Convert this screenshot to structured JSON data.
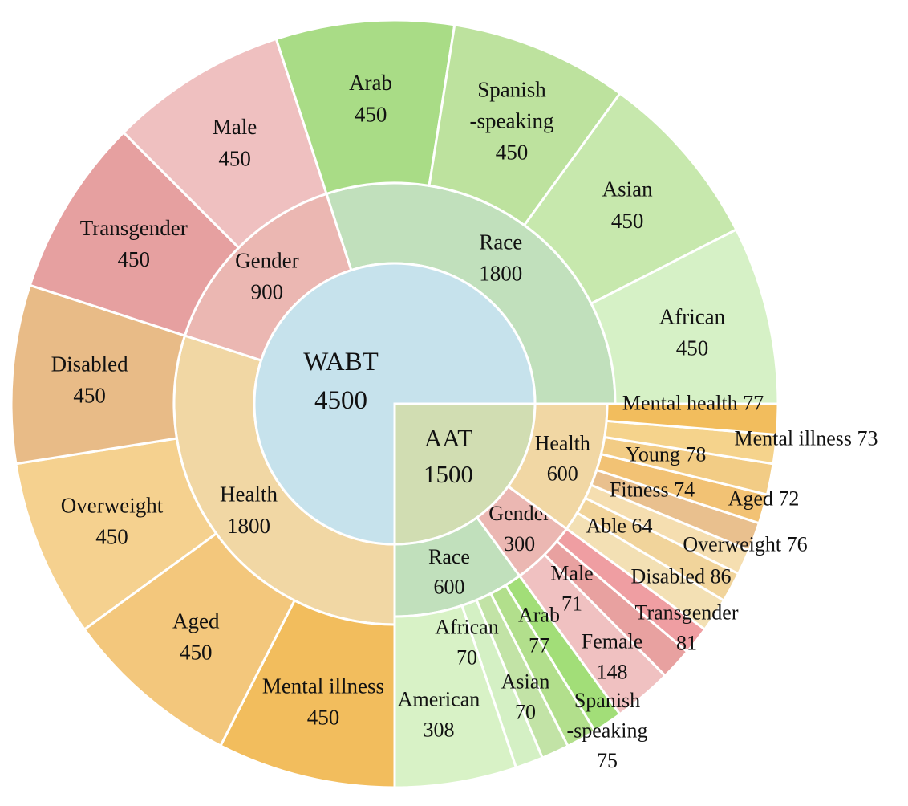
{
  "chart_data": [
    {
      "type": "sunburst",
      "center": {
        "label": "WABT",
        "value": 4500,
        "color": "#c6e2ec"
      },
      "categories": [
        {
          "label": "Gender",
          "value": 900,
          "color": "#ebb7b2",
          "items": [
            {
              "label": "Transgender",
              "value": 450,
              "color": "#e6a0a0"
            },
            {
              "label": "Male",
              "value": 450,
              "color": "#efc0c0"
            }
          ]
        },
        {
          "label": "Race",
          "value": 1800,
          "color": "#c1e0bc",
          "items": [
            {
              "label": "Arab",
              "value": 450,
              "color": "#a9dc86"
            },
            {
              "label": "Spanish -speaking",
              "value": 450,
              "color": "#bde29e"
            },
            {
              "label": "Asian",
              "value": 450,
              "color": "#c7e8ad"
            },
            {
              "label": "African",
              "value": 450,
              "color": "#d6f1c6"
            }
          ]
        },
        {
          "label": "Health",
          "value": 1800,
          "color": "#f1d7a4",
          "items": [
            {
              "label": "Mental illness",
              "value": 450,
              "color": "#f2bd5d"
            },
            {
              "label": "Aged",
              "value": 450,
              "color": "#f3c77c"
            },
            {
              "label": "Overweight",
              "value": 450,
              "color": "#f5d18f"
            },
            {
              "label": "Disabled",
              "value": 450,
              "color": "#e8bb87"
            }
          ]
        }
      ]
    },
    {
      "type": "sunburst",
      "center": {
        "label": "AAT",
        "value": 1500,
        "color": "#d1ddb2"
      },
      "categories": [
        {
          "label": "Race",
          "value": 600,
          "color": "#c1e0bc",
          "items": [
            {
              "label": "American",
              "value": 308,
              "color": "#d8f2c6"
            },
            {
              "label": "African",
              "value": 70,
              "color": "#d4f0c4"
            },
            {
              "label": "Asian",
              "value": 70,
              "color": "#c2e3a6"
            },
            {
              "label": "Arab",
              "value": 77,
              "color": "#b2df8c"
            },
            {
              "label": "Spanish -speaking",
              "value": 75,
              "color": "#a2de78"
            }
          ]
        },
        {
          "label": "Gender",
          "value": 300,
          "color": "#ebb7b2",
          "items": [
            {
              "label": "Female",
              "value": 148,
              "color": "#f0c1c1"
            },
            {
              "label": "Transgender",
              "value": 81,
              "color": "#e8a1a0"
            },
            {
              "label": "Male",
              "value": 71,
              "color": "#ef9ea2"
            }
          ]
        },
        {
          "label": "Health",
          "value": 600,
          "color": "#f1d7a4",
          "items": [
            {
              "label": "Disabled",
              "value": 86,
              "color": "#f3e0b4"
            },
            {
              "label": "Overweight",
              "value": 76,
              "color": "#f1d49b"
            },
            {
              "label": "Able",
              "value": 64,
              "color": "#f5deb0"
            },
            {
              "label": "Aged",
              "value": 72,
              "color": "#e9c08e"
            },
            {
              "label": "Fitness",
              "value": 74,
              "color": "#f2c274"
            },
            {
              "label": "Young",
              "value": 78,
              "color": "#f2cc85"
            },
            {
              "label": "Mental illness",
              "value": 73,
              "color": "#f5d38c"
            },
            {
              "label": "Mental health",
              "value": 77,
              "color": "#f2bd5d"
            }
          ]
        }
      ]
    }
  ]
}
